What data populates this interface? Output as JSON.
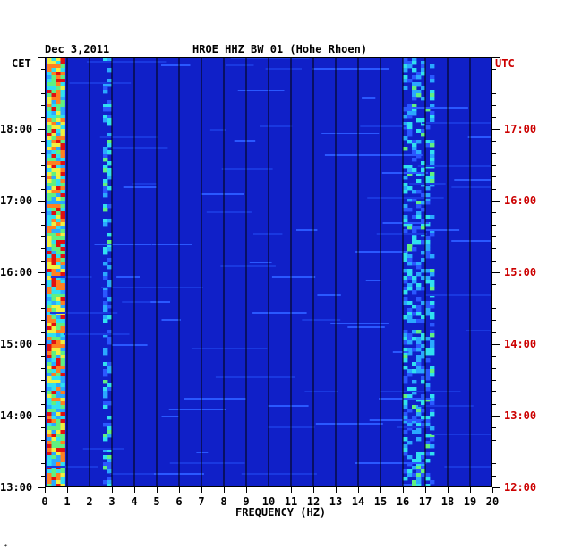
{
  "header": {
    "date": "Dec 3,2011",
    "station": "HROE HHZ BW 01 (Hohe Rhoen)",
    "left_zone": "CET",
    "right_zone": "UTC"
  },
  "colors": {
    "background": "#1020c8",
    "grid": "#000000",
    "utc_text": "#cc0000"
  },
  "chart_data": {
    "type": "heatmap",
    "title": "HROE HHZ BW 01 (Hohe Rhoen)",
    "xlabel": "FREQUENCY (HZ)",
    "xlim": [
      0,
      20
    ],
    "x_ticks": [
      "0",
      "1",
      "2",
      "3",
      "4",
      "5",
      "6",
      "7",
      "8",
      "9",
      "10",
      "11",
      "12",
      "13",
      "14",
      "15",
      "16",
      "17",
      "18",
      "19",
      "20"
    ],
    "ylim_hours_cet": [
      13,
      19
    ],
    "y_ticks_left": [
      {
        "hour": 13,
        "label": "13:00"
      },
      {
        "hour": 14,
        "label": "14:00"
      },
      {
        "hour": 15,
        "label": "15:00"
      },
      {
        "hour": 16,
        "label": "16:00"
      },
      {
        "hour": 17,
        "label": "17:00"
      },
      {
        "hour": 18,
        "label": "18:00"
      }
    ],
    "y_ticks_right": [
      {
        "hour": 13,
        "label": "12:00"
      },
      {
        "hour": 14,
        "label": "13:00"
      },
      {
        "hour": 15,
        "label": "14:00"
      },
      {
        "hour": 16,
        "label": "15:00"
      },
      {
        "hour": 17,
        "label": "16:00"
      },
      {
        "hour": 18,
        "label": "17:00"
      }
    ],
    "energy_bands": [
      {
        "fmin": 0.1,
        "fmax": 0.9,
        "level": "high"
      },
      {
        "fmin": 2.6,
        "fmax": 3.0,
        "level": "medium"
      },
      {
        "fmin": 16.0,
        "fmax": 17.4,
        "level": "medium"
      }
    ]
  },
  "corner_mark": "*"
}
